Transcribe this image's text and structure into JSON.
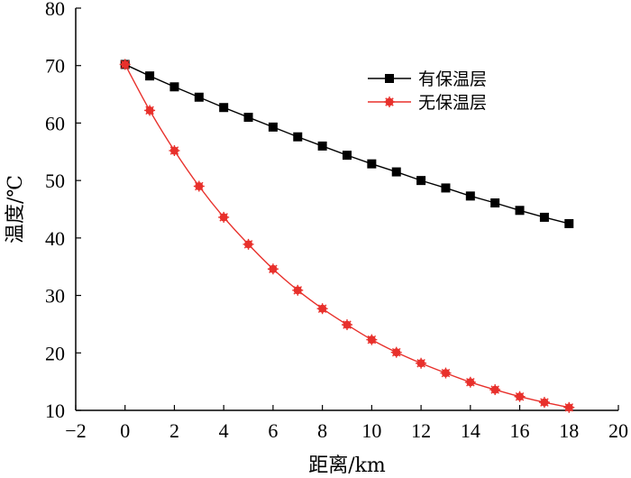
{
  "chart_data": {
    "type": "line",
    "xlabel": "距离/km",
    "ylabel": "温度/℃",
    "xlim": [
      -2,
      20
    ],
    "ylim": [
      10,
      80
    ],
    "xticks": [
      -2,
      0,
      2,
      4,
      6,
      8,
      10,
      12,
      14,
      16,
      18,
      20
    ],
    "yticks": [
      10,
      20,
      30,
      40,
      50,
      60,
      70,
      80
    ],
    "xtick_labels": [
      "−2",
      "0",
      "2",
      "4",
      "6",
      "8",
      "10",
      "12",
      "14",
      "16",
      "18",
      "20"
    ],
    "ytick_labels": [
      "10",
      "20",
      "30",
      "40",
      "50",
      "60",
      "70",
      "80"
    ],
    "grid": false,
    "legend_position": "top-right",
    "x": [
      0,
      1,
      2,
      3,
      4,
      5,
      6,
      7,
      8,
      9,
      10,
      11,
      12,
      13,
      14,
      15,
      16,
      17,
      18
    ],
    "series": [
      {
        "name": "有保温层",
        "color": "#000000",
        "marker": "square",
        "values": [
          70.2,
          68.2,
          66.3,
          64.5,
          62.7,
          61.0,
          59.3,
          57.6,
          56.0,
          54.4,
          52.9,
          51.5,
          50.0,
          48.7,
          47.3,
          46.1,
          44.8,
          43.6,
          42.5
        ]
      },
      {
        "name": "无保温层",
        "color": "#e8312c",
        "marker": "circle",
        "values": [
          70.2,
          62.2,
          55.2,
          49.0,
          43.6,
          38.9,
          34.6,
          30.9,
          27.7,
          24.9,
          22.3,
          20.1,
          18.2,
          16.5,
          14.9,
          13.6,
          12.4,
          11.4,
          10.5
        ]
      }
    ]
  }
}
